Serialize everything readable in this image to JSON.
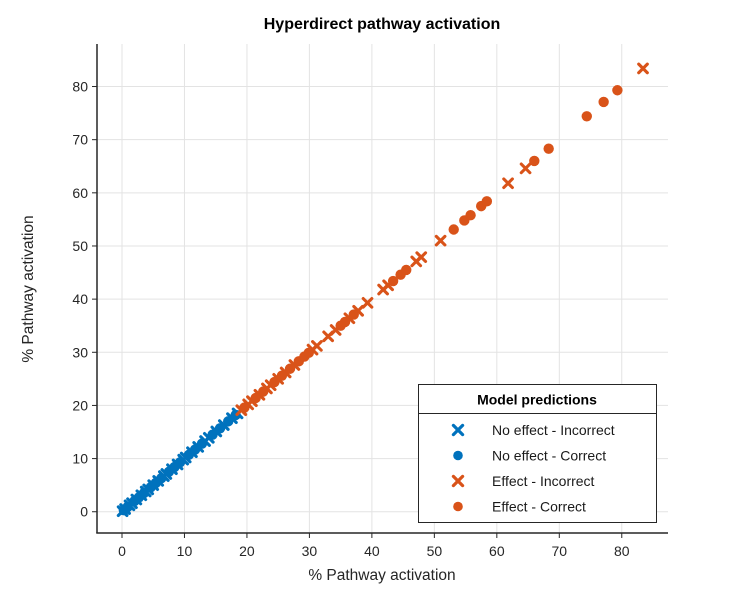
{
  "chart_data": {
    "type": "scatter",
    "title": "Hyperdirect pathway activation",
    "xlabel": "% Pathway activation",
    "ylabel": "% Pathway activation",
    "xlim": [
      -4,
      87.4
    ],
    "ylim": [
      -4,
      88
    ],
    "xticks": [
      0,
      10,
      20,
      30,
      40,
      50,
      60,
      70,
      80
    ],
    "yticks": [
      0,
      10,
      20,
      30,
      40,
      50,
      60,
      70,
      80
    ],
    "grid": true,
    "identity_line_note": "all points lie on the identity line y = x; values below are the shared x=y coordinate of each point",
    "colors": {
      "no_effect": "#0072BD",
      "effect": "#D95319",
      "grid": "#E3E3E3",
      "axis": "#262626"
    },
    "legend": {
      "title": "Model predictions",
      "position": "inside lower right"
    },
    "series": [
      {
        "name": "No effect - Incorrect",
        "marker": "x",
        "color": "#0072BD",
        "values": [
          0.1,
          0.5,
          1.2,
          1.6,
          2.3,
          3.1,
          3.8,
          4.2,
          5.0,
          5.8,
          6.7,
          7.1,
          8.0,
          8.9,
          9.8,
          10.2,
          11.2,
          12.2,
          13.3,
          13.9,
          15.1,
          16.3,
          17.6,
          18.5
        ]
      },
      {
        "name": "No effect - Correct",
        "marker": "circle",
        "color": "#0072BD",
        "values": [
          0.3,
          0.9,
          2.0,
          2.7,
          3.5,
          4.6,
          5.4,
          6.3,
          7.5,
          8.4,
          9.3,
          10.7,
          11.7,
          12.8,
          14.5,
          15.7,
          17.0,
          18.2
        ]
      },
      {
        "name": "Effect - Incorrect",
        "marker": "x",
        "color": "#D95319",
        "values": [
          19.1,
          20.2,
          20.8,
          22.0,
          23.2,
          23.8,
          25.0,
          26.2,
          27.6,
          30.5,
          31.2,
          33.0,
          34.2,
          36.4,
          37.8,
          39.3,
          41.8,
          42.6,
          47.1,
          47.9,
          51.0,
          61.8,
          64.6,
          83.4
        ]
      },
      {
        "name": "Effect - Correct",
        "marker": "circle",
        "color": "#D95319",
        "values": [
          19.6,
          21.4,
          22.6,
          24.4,
          25.6,
          26.9,
          28.3,
          29.2,
          29.9,
          35.0,
          35.7,
          37.1,
          43.4,
          44.6,
          45.5,
          53.1,
          54.8,
          55.8,
          57.5,
          58.4,
          66.0,
          68.3,
          74.4,
          77.1,
          79.3
        ]
      }
    ]
  }
}
